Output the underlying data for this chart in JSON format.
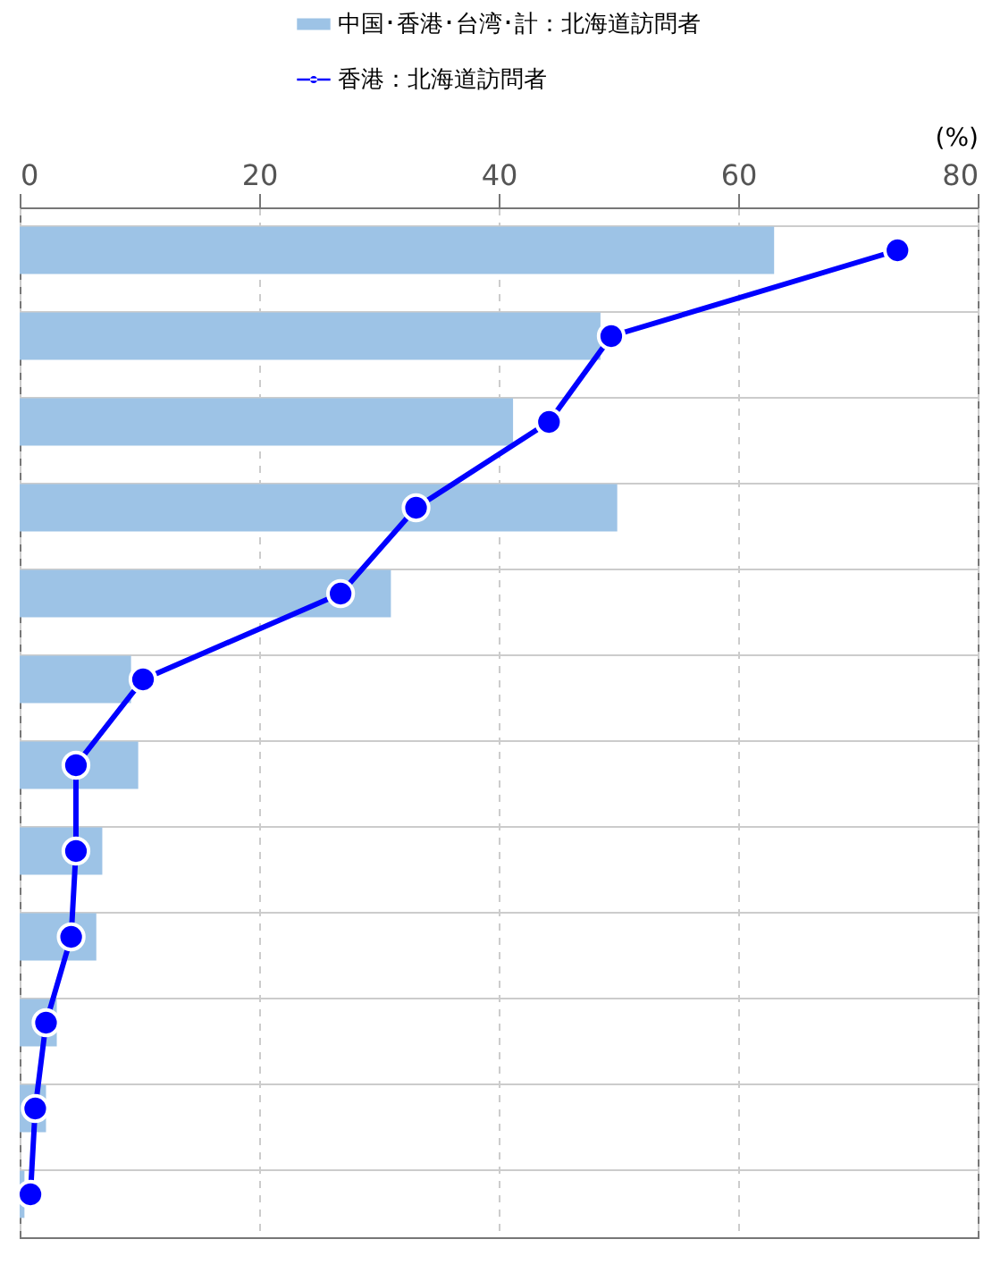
{
  "chart_data": {
    "type": "bar",
    "orientation": "horizontal",
    "xlabel": "(%)",
    "categories": [
      null,
      null,
      null,
      null,
      null,
      null,
      null,
      null,
      null,
      null,
      null,
      null
    ],
    "series": [
      {
        "name": "中国･香港･台湾･計：北海道訪問者",
        "color": "#9dc3e6",
        "values": [
          63.0,
          48.5,
          41.2,
          49.9,
          31.0,
          9.3,
          9.9,
          6.9,
          6.4,
          3.1,
          2.2,
          0.4
        ]
      },
      {
        "name": "香港：北海道訪問者",
        "type": "line",
        "color": "#0000ff",
        "marker": "circle",
        "values": [
          73.3,
          49.4,
          44.2,
          33.1,
          26.8,
          10.3,
          4.7,
          4.7,
          4.3,
          2.2,
          1.3,
          0.9
        ]
      }
    ],
    "xlim": [
      0,
      80
    ],
    "xticks": [
      0,
      20,
      40,
      60,
      80
    ],
    "grid": true,
    "legend": "top",
    "tick_labels": "x"
  }
}
